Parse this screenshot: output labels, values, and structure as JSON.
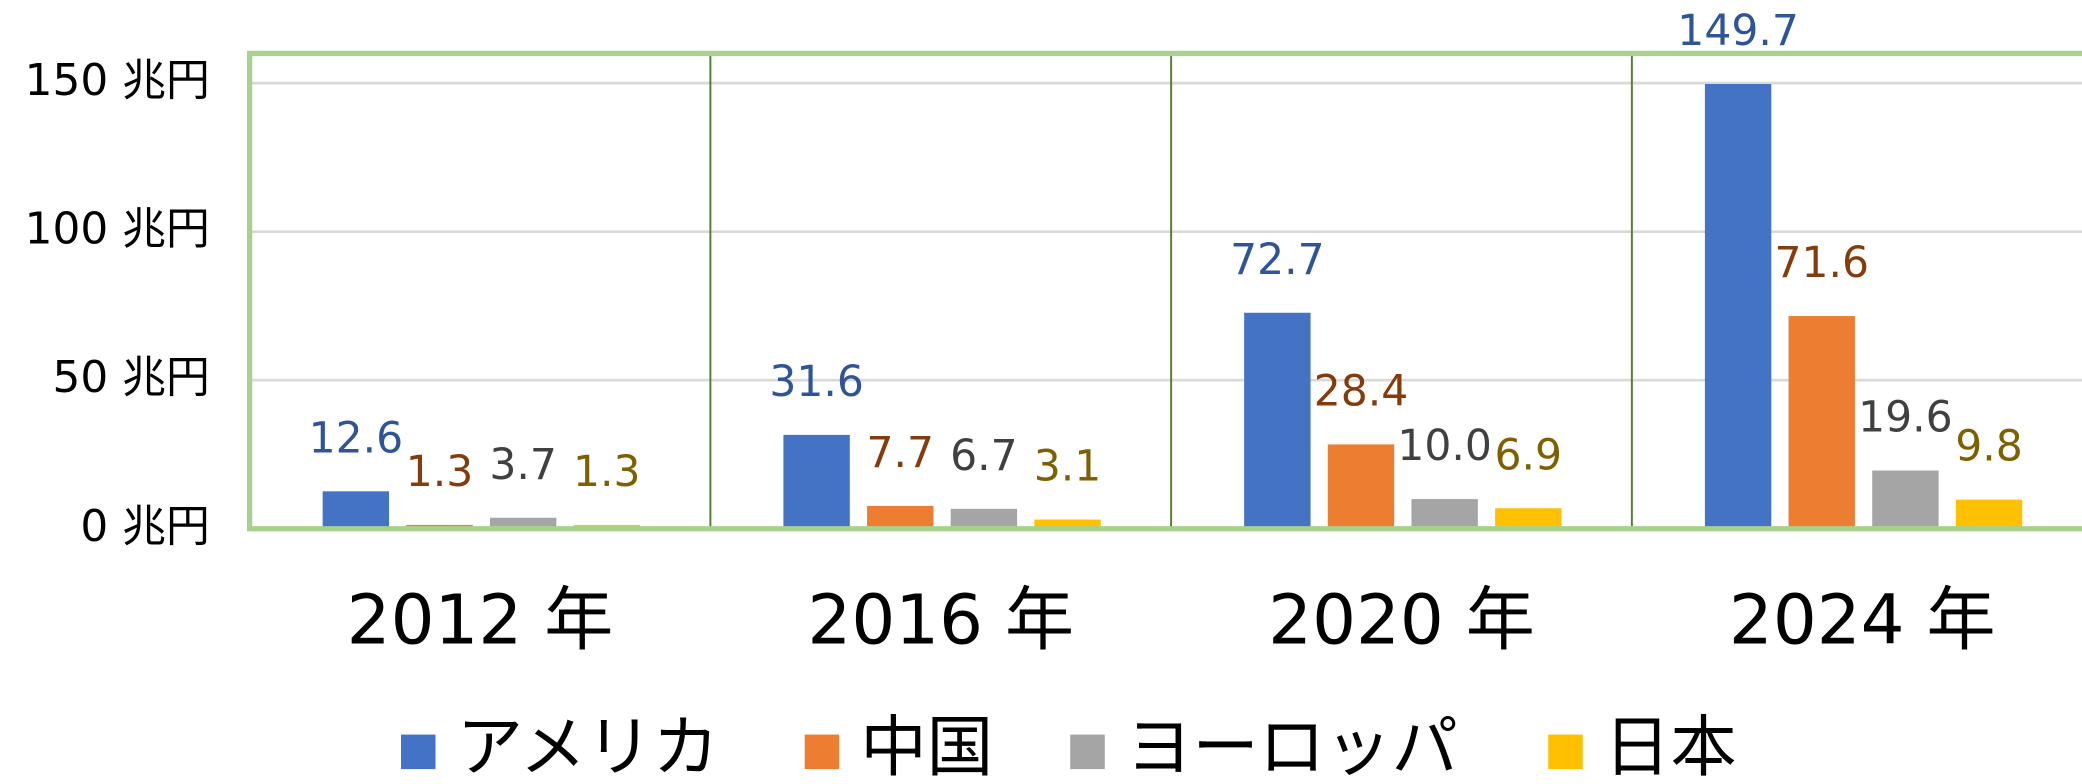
{
  "chart_data": {
    "type": "bar",
    "categories": [
      "2012 年",
      "2016 年",
      "2020 年",
      "2024 年"
    ],
    "series": [
      {
        "name": "アメリカ",
        "color": "#4472c4",
        "label_color": "#2f5597",
        "values": [
          12.6,
          31.6,
          72.7,
          149.7
        ],
        "value_labels": [
          "12.6",
          "31.6",
          "72.7",
          "149.7"
        ]
      },
      {
        "name": "中国",
        "color": "#ed7d31",
        "label_color": "#843c0c",
        "values": [
          1.3,
          7.7,
          28.4,
          71.6
        ],
        "value_labels": [
          "1.3",
          "7.7",
          "28.4",
          "71.6"
        ]
      },
      {
        "name": "ヨーロッパ",
        "color": "#a5a5a5",
        "label_color": "#404040",
        "values": [
          3.7,
          6.7,
          10.0,
          19.6
        ],
        "value_labels": [
          "3.7",
          "6.7",
          "10.0",
          "19.6"
        ]
      },
      {
        "name": "日本",
        "color": "#ffc000",
        "label_color": "#7f6000",
        "values": [
          1.3,
          3.1,
          6.9,
          9.8
        ],
        "value_labels": [
          "1.3",
          "3.1",
          "6.9",
          "9.8"
        ]
      }
    ],
    "ylim": [
      0,
      160
    ],
    "yticks": [
      {
        "value": 0,
        "label": "0 兆円"
      },
      {
        "value": 50,
        "label": "50 兆円"
      },
      {
        "value": 100,
        "label": "100 兆円"
      },
      {
        "value": 150,
        "label": "150 兆円"
      }
    ],
    "grid": true,
    "legend": "bottom"
  }
}
